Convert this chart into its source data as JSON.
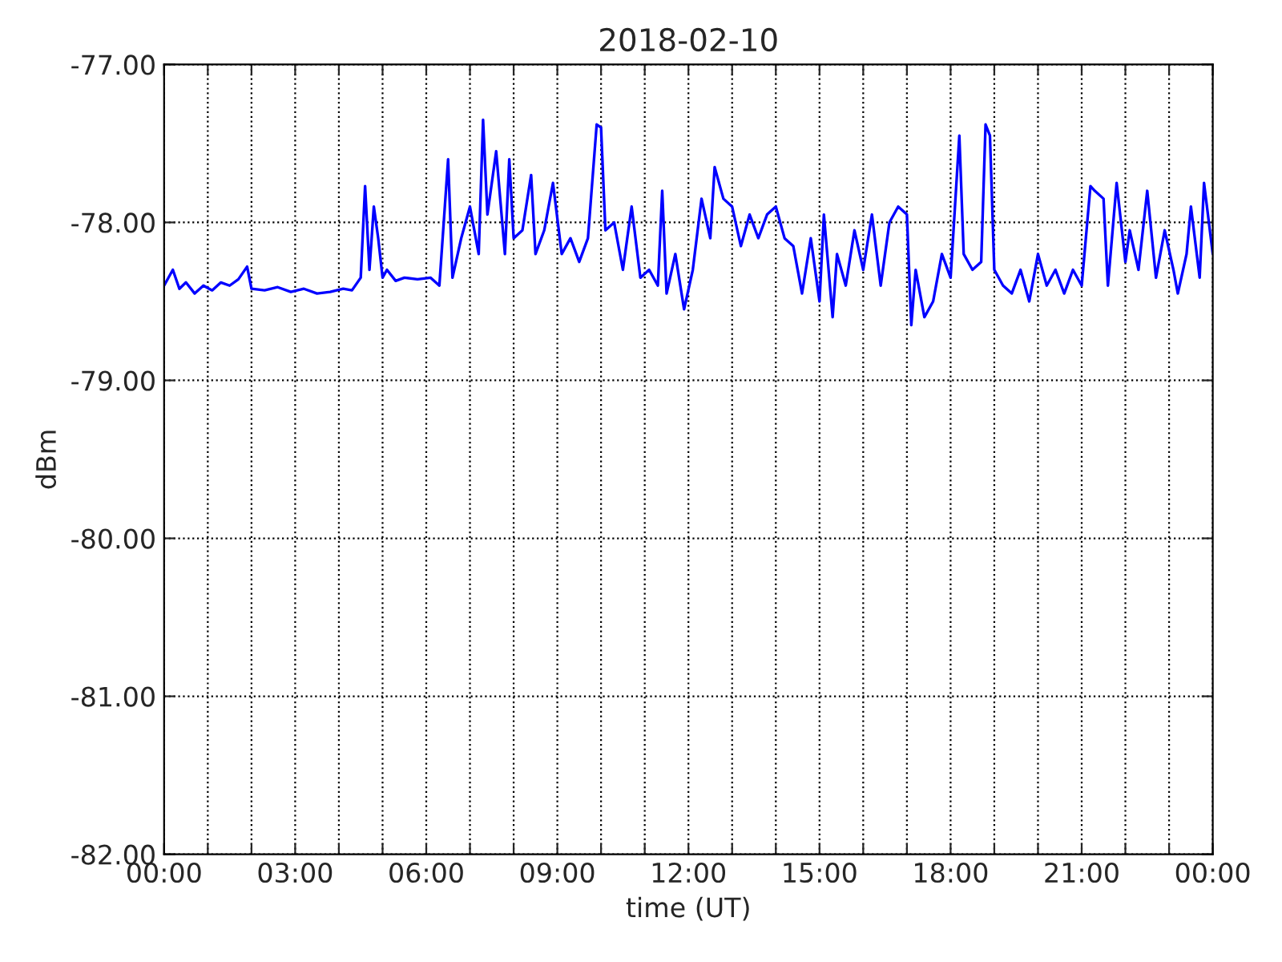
{
  "chart_data": {
    "type": "line",
    "title": "2018-02-10",
    "xlabel": "time (UT)",
    "ylabel": "dBm",
    "x": [
      0,
      0.2,
      0.35,
      0.5,
      0.7,
      0.9,
      1.1,
      1.3,
      1.5,
      1.7,
      1.9,
      2.0,
      2.3,
      2.6,
      2.9,
      3.2,
      3.5,
      3.8,
      4.1,
      4.3,
      4.5,
      4.6,
      4.7,
      4.8,
      4.9,
      5.0,
      5.1,
      5.3,
      5.5,
      5.8,
      6.1,
      6.3,
      6.5,
      6.6,
      6.8,
      7.0,
      7.2,
      7.3,
      7.4,
      7.6,
      7.8,
      7.9,
      8.0,
      8.2,
      8.4,
      8.5,
      8.7,
      8.9,
      9.1,
      9.3,
      9.5,
      9.7,
      9.9,
      10.0,
      10.1,
      10.3,
      10.5,
      10.7,
      10.9,
      11.1,
      11.3,
      11.4,
      11.5,
      11.7,
      11.9,
      12.1,
      12.3,
      12.5,
      12.6,
      12.8,
      13.0,
      13.2,
      13.4,
      13.6,
      13.8,
      14.0,
      14.2,
      14.4,
      14.6,
      14.8,
      15.0,
      15.1,
      15.3,
      15.4,
      15.6,
      15.8,
      16.0,
      16.2,
      16.4,
      16.6,
      16.8,
      17.0,
      17.1,
      17.2,
      17.4,
      17.6,
      17.8,
      18.0,
      18.2,
      18.3,
      18.5,
      18.7,
      18.8,
      18.9,
      19.0,
      19.2,
      19.4,
      19.6,
      19.8,
      20.0,
      20.2,
      20.4,
      20.6,
      20.8,
      21.0,
      21.2,
      21.3,
      21.5,
      21.6,
      21.8,
      22.0,
      22.1,
      22.3,
      22.5,
      22.7,
      22.9,
      23.1,
      23.2,
      23.4,
      23.5,
      23.7,
      23.8,
      24.0
    ],
    "series": [
      {
        "color": "#0000ff",
        "values": [
          -78.4,
          -78.3,
          -78.42,
          -78.38,
          -78.45,
          -78.4,
          -78.43,
          -78.38,
          -78.4,
          -78.36,
          -78.28,
          -78.42,
          -78.43,
          -78.41,
          -78.44,
          -78.42,
          -78.45,
          -78.44,
          -78.42,
          -78.43,
          -78.35,
          -77.77,
          -78.3,
          -77.9,
          -78.1,
          -78.35,
          -78.3,
          -78.37,
          -78.35,
          -78.36,
          -78.35,
          -78.4,
          -77.6,
          -78.35,
          -78.1,
          -77.9,
          -78.2,
          -77.35,
          -77.95,
          -77.55,
          -78.2,
          -77.6,
          -78.1,
          -78.05,
          -77.7,
          -78.2,
          -78.05,
          -77.75,
          -78.2,
          -78.1,
          -78.25,
          -78.1,
          -77.38,
          -77.4,
          -78.05,
          -78.0,
          -78.3,
          -77.9,
          -78.35,
          -78.3,
          -78.4,
          -77.8,
          -78.45,
          -78.2,
          -78.55,
          -78.3,
          -77.85,
          -78.1,
          -77.65,
          -77.85,
          -77.9,
          -78.15,
          -77.95,
          -78.1,
          -77.95,
          -77.9,
          -78.1,
          -78.15,
          -78.45,
          -78.1,
          -78.5,
          -77.95,
          -78.6,
          -78.2,
          -78.4,
          -78.05,
          -78.3,
          -77.95,
          -78.4,
          -78.0,
          -77.9,
          -77.95,
          -78.65,
          -78.3,
          -78.6,
          -78.5,
          -78.2,
          -78.35,
          -77.45,
          -78.2,
          -78.3,
          -78.25,
          -77.38,
          -77.45,
          -78.3,
          -78.4,
          -78.45,
          -78.3,
          -78.5,
          -78.2,
          -78.4,
          -78.3,
          -78.45,
          -78.3,
          -78.4,
          -77.77,
          -77.8,
          -77.85,
          -78.4,
          -77.75,
          -78.25,
          -78.05,
          -78.3,
          -77.8,
          -78.35,
          -78.05,
          -78.3,
          -78.45,
          -78.2,
          -77.9,
          -78.35,
          -77.75,
          -78.2
        ]
      }
    ],
    "xlim": [
      0,
      24
    ],
    "ylim": [
      -82,
      -77
    ],
    "xticks": [
      {
        "value": 0,
        "label": "00:00"
      },
      {
        "value": 1,
        "label": null
      },
      {
        "value": 2,
        "label": null
      },
      {
        "value": 3,
        "label": "03:00"
      },
      {
        "value": 4,
        "label": null
      },
      {
        "value": 5,
        "label": null
      },
      {
        "value": 6,
        "label": "06:00"
      },
      {
        "value": 7,
        "label": null
      },
      {
        "value": 8,
        "label": null
      },
      {
        "value": 9,
        "label": "09:00"
      },
      {
        "value": 10,
        "label": null
      },
      {
        "value": 11,
        "label": null
      },
      {
        "value": 12,
        "label": "12:00"
      },
      {
        "value": 13,
        "label": null
      },
      {
        "value": 14,
        "label": null
      },
      {
        "value": 15,
        "label": "15:00"
      },
      {
        "value": 16,
        "label": null
      },
      {
        "value": 17,
        "label": null
      },
      {
        "value": 18,
        "label": "18:00"
      },
      {
        "value": 19,
        "label": null
      },
      {
        "value": 20,
        "label": null
      },
      {
        "value": 21,
        "label": "21:00"
      },
      {
        "value": 22,
        "label": null
      },
      {
        "value": 23,
        "label": null
      },
      {
        "value": 24,
        "label": "00:00"
      }
    ],
    "yticks": [
      {
        "value": -82,
        "label": "-82.00"
      },
      {
        "value": -81,
        "label": "-81.00"
      },
      {
        "value": -80,
        "label": "-80.00"
      },
      {
        "value": -79,
        "label": "-79.00"
      },
      {
        "value": -78,
        "label": "-78.00"
      },
      {
        "value": -77,
        "label": "-77.00"
      }
    ],
    "grid": true,
    "marker": "none",
    "line_style": "solid"
  }
}
